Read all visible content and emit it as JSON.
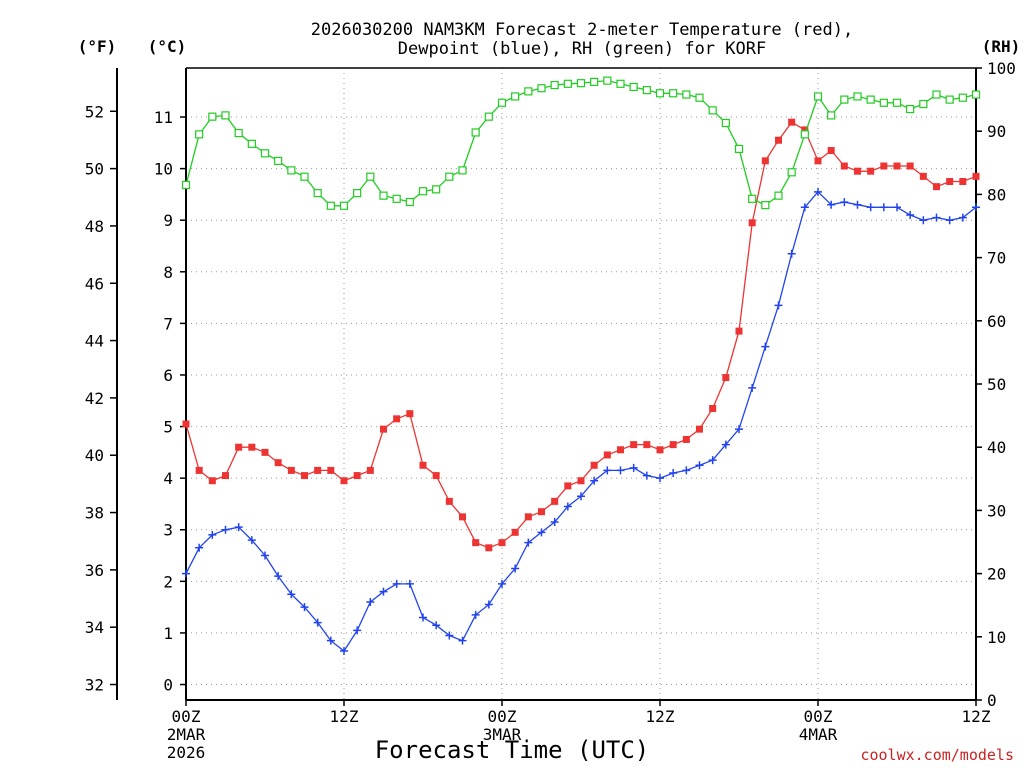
{
  "chart_data": {
    "type": "line",
    "title_line1": "2026030200 NAM3KM Forecast 2-meter Temperature (red),",
    "title_line2": "Dewpoint (blue), RH (green) for KORF",
    "xlabel": "Forecast Time (UTC)",
    "credit": "coolwx.com/models",
    "units": {
      "fahrenheit": "(°F)",
      "celsius": "(°C)",
      "rh": "(RH)"
    },
    "x_forecast_hours_range": [
      0,
      60
    ],
    "x_ticks": [
      {
        "hour": 0,
        "line1": "00Z",
        "line2": "2MAR",
        "line3": "2026"
      },
      {
        "hour": 12,
        "line1": "12Z",
        "line2": "",
        "line3": ""
      },
      {
        "hour": 24,
        "line1": "00Z",
        "line2": "3MAR",
        "line3": ""
      },
      {
        "hour": 36,
        "line1": "12Z",
        "line2": "",
        "line3": ""
      },
      {
        "hour": 48,
        "line1": "00Z",
        "line2": "4MAR",
        "line3": ""
      },
      {
        "hour": 60,
        "line1": "12Z",
        "line2": "",
        "line3": ""
      }
    ],
    "celsius_range": [
      -0.3,
      11.95
    ],
    "celsius_ticks": [
      "0",
      "1",
      "2",
      "3",
      "4",
      "5",
      "6",
      "7",
      "8",
      "9",
      "10",
      "11"
    ],
    "fahrenheit_ticks": [
      "32",
      "34",
      "36",
      "38",
      "40",
      "42",
      "44",
      "46",
      "48",
      "50",
      "52"
    ],
    "rh_range": [
      0,
      100
    ],
    "rh_ticks": [
      "0",
      "10",
      "20",
      "30",
      "40",
      "50",
      "60",
      "70",
      "80",
      "90",
      "100"
    ],
    "series": [
      {
        "name": "2-meter Temperature",
        "unit": "C",
        "color": "#ee3333",
        "marker": "filled-square",
        "values": [
          5.05,
          4.15,
          3.95,
          4.05,
          4.6,
          4.6,
          4.5,
          4.3,
          4.15,
          4.05,
          4.15,
          4.15,
          3.95,
          4.05,
          4.15,
          4.95,
          5.15,
          5.25,
          4.25,
          4.05,
          3.55,
          3.25,
          2.75,
          2.65,
          2.75,
          2.95,
          3.25,
          3.35,
          3.55,
          3.85,
          3.95,
          4.25,
          4.45,
          4.55,
          4.65,
          4.65,
          4.55,
          4.65,
          4.75,
          4.95,
          5.35,
          5.95,
          6.85,
          8.95,
          10.15,
          10.55,
          10.9,
          10.75,
          10.15,
          10.35,
          10.05,
          9.95,
          9.95,
          10.05,
          10.05,
          10.05,
          9.85,
          9.65,
          9.75,
          9.75,
          9.85
        ]
      },
      {
        "name": "Dewpoint",
        "unit": "C",
        "color": "#2244ee",
        "marker": "plus",
        "values": [
          2.15,
          2.65,
          2.9,
          3.0,
          3.05,
          2.8,
          2.5,
          2.1,
          1.75,
          1.5,
          1.2,
          0.85,
          0.65,
          1.05,
          1.6,
          1.8,
          1.95,
          1.95,
          1.3,
          1.15,
          0.95,
          0.85,
          1.35,
          1.55,
          1.95,
          2.25,
          2.75,
          2.95,
          3.15,
          3.45,
          3.65,
          3.95,
          4.15,
          4.15,
          4.2,
          4.05,
          4.0,
          4.1,
          4.15,
          4.25,
          4.35,
          4.65,
          4.95,
          5.75,
          6.55,
          7.35,
          8.35,
          9.25,
          9.55,
          9.3,
          9.35,
          9.3,
          9.25,
          9.25,
          9.25,
          9.1,
          9.0,
          9.05,
          9.0,
          9.05,
          9.25
        ]
      },
      {
        "name": "RH",
        "unit": "%",
        "color": "#22cc22",
        "marker": "open-square",
        "values": [
          81.5,
          89.5,
          92.3,
          92.5,
          89.7,
          88.0,
          86.5,
          85.3,
          83.8,
          82.8,
          80.2,
          78.2,
          78.2,
          80.2,
          82.8,
          79.8,
          79.3,
          78.8,
          80.5,
          80.8,
          82.8,
          83.8,
          89.8,
          92.3,
          94.5,
          95.5,
          96.3,
          96.8,
          97.3,
          97.5,
          97.6,
          97.8,
          98.0,
          97.5,
          97.0,
          96.5,
          96.0,
          96.0,
          95.8,
          95.3,
          93.3,
          91.3,
          87.2,
          79.3,
          78.3,
          79.8,
          83.5,
          89.5,
          95.5,
          92.5,
          95.0,
          95.5,
          95.0,
          94.5,
          94.5,
          93.5,
          94.3,
          95.8,
          95.0,
          95.3,
          95.8
        ]
      }
    ]
  }
}
